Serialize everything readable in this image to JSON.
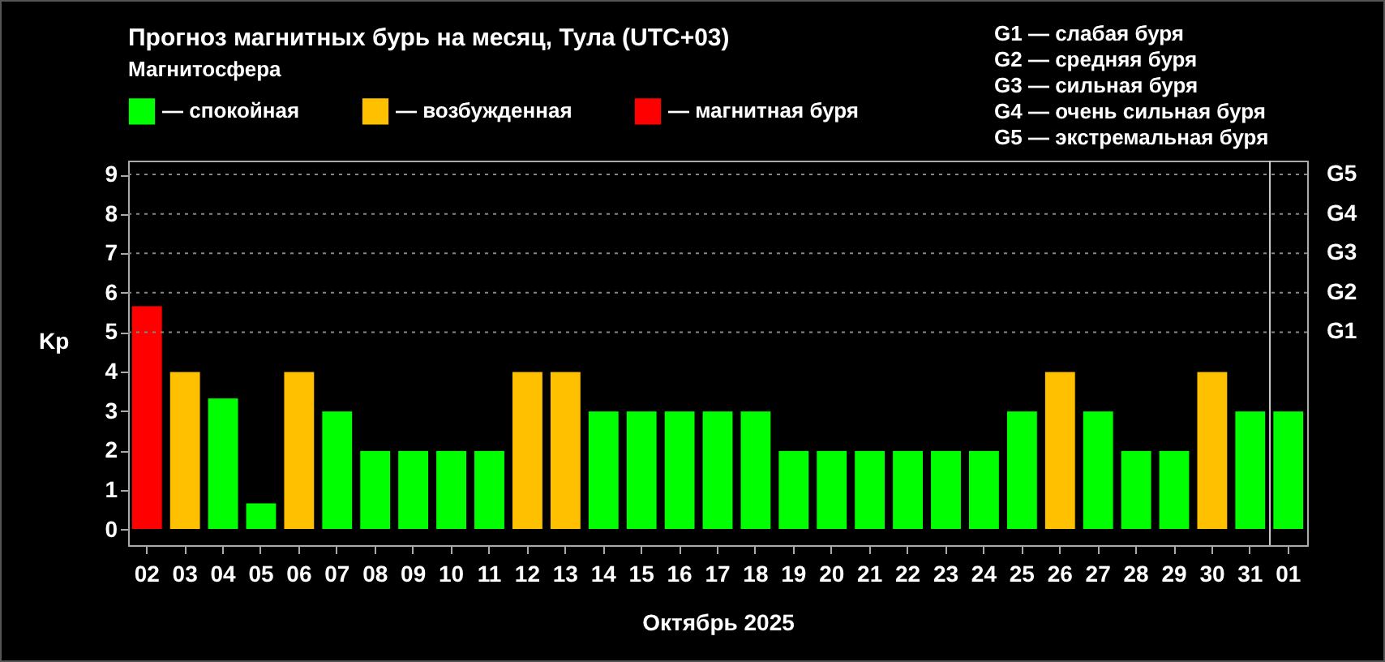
{
  "chart_data": {
    "type": "bar",
    "title": "Прогноз магнитных бурь на месяц, Тула (UTC+03)",
    "xlabel": "Октябрь 2025",
    "ylabel": "Kp",
    "legend_title": "Магнитосфера",
    "legend": "top left",
    "categories": [
      "02",
      "03",
      "04",
      "05",
      "06",
      "07",
      "08",
      "09",
      "10",
      "11",
      "12",
      "13",
      "14",
      "15",
      "16",
      "17",
      "18",
      "19",
      "20",
      "21",
      "22",
      "23",
      "24",
      "25",
      "26",
      "27",
      "28",
      "29",
      "30",
      "31",
      "01"
    ],
    "series": [
      {
        "name": "— спокойная",
        "color": "#00ff00",
        "values": [
          null,
          null,
          3.33,
          0.67,
          null,
          3,
          2,
          2,
          2,
          2,
          null,
          null,
          3,
          3,
          3,
          3,
          3,
          2,
          2,
          2,
          2,
          2,
          2,
          3,
          null,
          3,
          2,
          2,
          null,
          3,
          3
        ]
      },
      {
        "name": "— возбужденная",
        "color": "#ffc000",
        "values": [
          null,
          4,
          null,
          null,
          4,
          null,
          null,
          null,
          null,
          null,
          4,
          4,
          null,
          null,
          null,
          null,
          null,
          null,
          null,
          null,
          null,
          null,
          null,
          null,
          4,
          null,
          null,
          null,
          4,
          null,
          null
        ]
      },
      {
        "name": "— магнитная буря",
        "color": "#ff0000",
        "values": [
          5.67,
          null,
          null,
          null,
          null,
          null,
          null,
          null,
          null,
          null,
          null,
          null,
          null,
          null,
          null,
          null,
          null,
          null,
          null,
          null,
          null,
          null,
          null,
          null,
          null,
          null,
          null,
          null,
          null,
          null,
          null
        ]
      }
    ],
    "ylim": [
      -0.4,
      9.35
    ],
    "yticks": [
      0,
      1,
      2,
      3,
      4,
      5,
      6,
      7,
      8,
      9
    ],
    "ref_lines": [
      {
        "axis": "y",
        "value": 5,
        "label": "G1",
        "line_style": "dotted",
        "color": "#888888"
      },
      {
        "axis": "y",
        "value": 6,
        "label": "G2",
        "line_style": "dotted",
        "color": "#888888"
      },
      {
        "axis": "y",
        "value": 7,
        "label": "G3",
        "line_style": "dotted",
        "color": "#888888"
      },
      {
        "axis": "y",
        "value": 8,
        "label": "G4",
        "line_style": "dotted",
        "color": "#888888"
      },
      {
        "axis": "y",
        "value": 9,
        "label": "G5",
        "line_style": "dotted",
        "color": "#888888"
      },
      {
        "axis": "x",
        "value": "01",
        "color": "#cccccc",
        "line_style": "solid"
      }
    ],
    "annotations": [
      "G1 — слабая буря",
      "G2 — средняя буря",
      "G3 — сильная буря",
      "G4 — очень сильная буря",
      "G5 — экстремальная буря"
    ]
  }
}
